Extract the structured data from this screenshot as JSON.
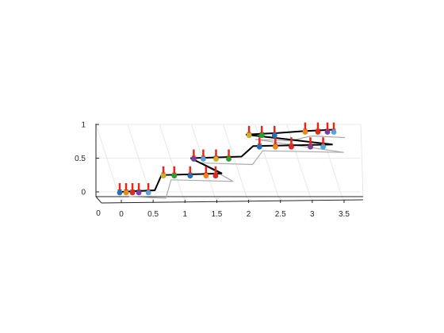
{
  "chart_data": {
    "type": "line",
    "view": "3d-perspective",
    "title": "",
    "xlabel": "",
    "ylabel": "",
    "zlabel": "",
    "xlim": [
      0,
      3.6
    ],
    "zlim": [
      0,
      1
    ],
    "x_ticks": [
      "0",
      "0.5",
      "1",
      "1.5",
      "2",
      "2.5",
      "3",
      "3.5"
    ],
    "z_ticks": [
      "0",
      "0.5",
      "1"
    ],
    "depth_tick": "0",
    "grid": true,
    "colors": {
      "trajectory": "#000000",
      "shadow": "#aaaaaa",
      "stem": "#e8251a",
      "markers": [
        "#2a6fb0",
        "#e88a1a",
        "#d4302a",
        "#7b3f9e",
        "#5aa2d6",
        "#c9b028",
        "#2ca02c"
      ]
    },
    "steps": [
      {
        "level": 0,
        "x_start": 0.0,
        "x_end": 0.55,
        "points": [
          0.0,
          0.1,
          0.2,
          0.3,
          0.45
        ]
      },
      {
        "level": 0.25,
        "x_start": 0.75,
        "x_end": 1.7,
        "points": [
          0.78,
          0.95,
          1.2,
          1.45,
          1.6
        ]
      },
      {
        "level": 0.5,
        "x_start": 1.3,
        "x_end": 2.1,
        "points": [
          1.35,
          1.5,
          1.7,
          1.9
        ]
      },
      {
        "level": 0.68,
        "x_start": 2.35,
        "x_end": 3.6,
        "points": [
          2.45,
          2.7,
          2.95,
          3.25,
          3.45
        ]
      },
      {
        "level": 0.85,
        "x_start": 2.3,
        "x_end": 2.8,
        "points": [
          2.35,
          2.55,
          2.75
        ]
      },
      {
        "level": 0.9,
        "x_start": 3.2,
        "x_end": 3.7,
        "points": [
          3.25,
          3.45,
          3.6,
          3.7
        ]
      }
    ]
  }
}
